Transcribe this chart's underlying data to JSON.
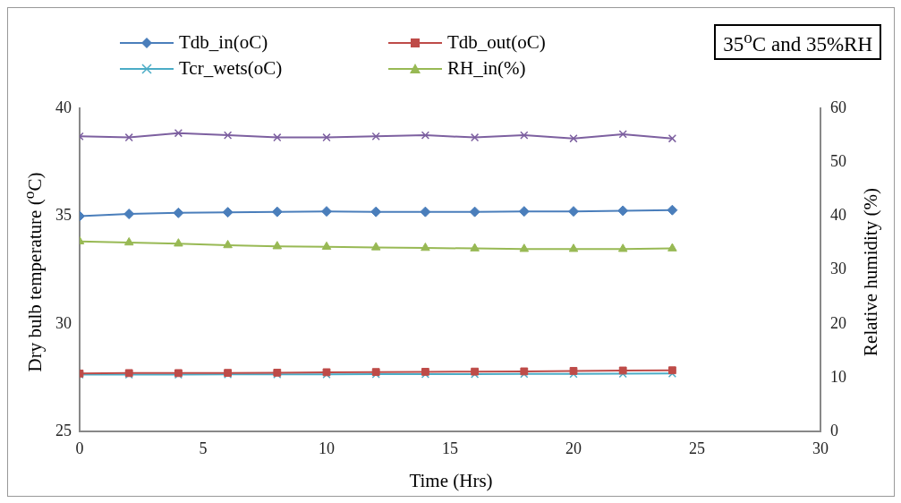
{
  "chart_data": {
    "type": "line",
    "xlabel": "Time (Hrs)",
    "ylabel": "Dry bulb temperature ($^{o}$C)",
    "y2label": "Relative humidity (%)",
    "annotations": [
      "35$^{o}$C and 35%RH"
    ],
    "x": [
      0,
      2,
      4,
      6,
      8,
      10,
      12,
      14,
      16,
      18,
      20,
      22,
      24
    ],
    "series": [
      {
        "name": "Tdb_in(oC)",
        "color": "#4a7ebb",
        "marker": "diamond",
        "values": [
          35.0,
          35.1,
          35.15,
          35.18,
          35.2,
          35.22,
          35.2,
          35.2,
          35.2,
          35.22,
          35.22,
          35.25,
          35.28
        ]
      },
      {
        "name": "Tdb_out(oC)",
        "color": "#be4b48",
        "marker": "square",
        "values": [
          27.7,
          27.72,
          27.72,
          27.73,
          27.74,
          27.76,
          27.77,
          27.78,
          27.79,
          27.8,
          27.82,
          27.84,
          27.85
        ]
      },
      {
        "name": "Tcr_wets(oC)",
        "color": "#4bacc6",
        "marker": "cross",
        "values": [
          27.65,
          27.65,
          27.65,
          27.66,
          27.66,
          27.66,
          27.67,
          27.67,
          27.67,
          27.68,
          27.68,
          27.69,
          27.7
        ]
      },
      {
        "name": "RH_in(%)",
        "color": "#98b954",
        "marker": "triangle",
        "axis": "y2",
        "values": [
          35.3,
          35.1,
          34.9,
          34.6,
          34.4,
          34.3,
          34.2,
          34.1,
          34.0,
          33.9,
          33.9,
          33.9,
          34.0
        ]
      },
      {
        "color": "#7d60a0",
        "marker": "cross",
        "values": [
          38.7,
          38.65,
          38.85,
          38.75,
          38.65,
          38.65,
          38.7,
          38.75,
          38.65,
          38.75,
          38.6,
          38.8,
          38.6
        ]
      }
    ],
    "xlim": [
      0,
      30
    ],
    "xticks": [
      0,
      5,
      10,
      15,
      20,
      25,
      30
    ],
    "ylim": [
      25,
      40
    ],
    "yticks": [
      25,
      30,
      35,
      40
    ],
    "y2lim": [
      0,
      60
    ],
    "y2ticks": [
      0,
      10,
      20,
      30,
      40,
      50,
      60
    ],
    "grid": false,
    "legend": "top"
  }
}
